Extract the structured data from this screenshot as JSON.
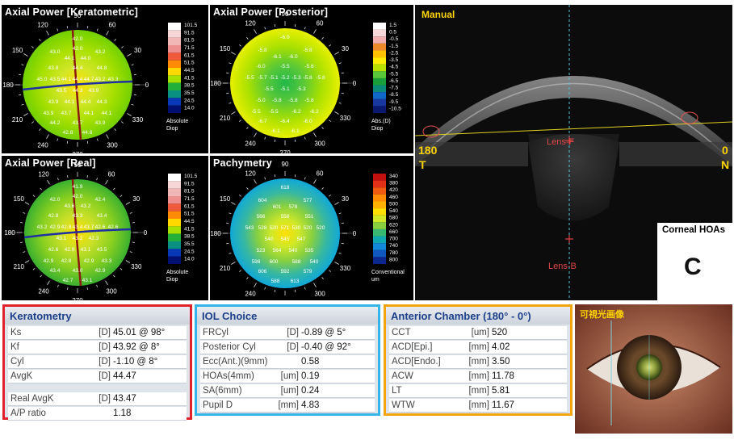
{
  "panels": {
    "ker": {
      "title": "Axial Power [Keratometric]",
      "scale": [
        "101.5",
        "91.5",
        "81.5",
        "71.5",
        "61.5",
        "51.5",
        "44.5",
        "41.5",
        "38.5",
        "35.5",
        "24.5",
        "14.0"
      ],
      "scale_unit": [
        "Absolute",
        "Diop"
      ],
      "values": [
        "42.0",
        "43.0",
        "43.2",
        "44.1",
        "44.0",
        "43.8",
        "44.4",
        "44.8",
        "45.0",
        "43.5",
        "44.1",
        "44.4",
        "44.7",
        "43.2",
        "43.3",
        "43.5",
        "44.3",
        "43.9",
        "43.9",
        "44.1",
        "44.4",
        "44.3",
        "43.9",
        "43.7",
        "44.1",
        "44.1",
        "44.2",
        "43.7",
        "43.9",
        "42.8",
        "44.6",
        "42.0"
      ]
    },
    "post": {
      "title": "Axial Power [Posterior]",
      "scale": [
        "1.5",
        "0.5",
        "-0.5",
        "-1.5",
        "-2.5",
        "-3.5",
        "-4.5",
        "-5.5",
        "-6.5",
        "-7.5",
        "-8.5",
        "-9.5",
        "-10.5"
      ],
      "scale_unit": [
        "Abs.(D)",
        "Diop"
      ],
      "values": [
        "-6.0",
        "-5.8",
        "-5.8",
        "-6.1",
        "-6.0",
        "-6.0",
        "-5.5",
        "-5.6",
        "-5.5",
        "-5.7",
        "-5.1",
        "-5.2",
        "-5.3",
        "-5.8",
        "-5.8",
        "-5.5",
        "-5.1",
        "-5.3",
        "-5.0",
        "-5.8",
        "-5.8",
        "-5.8",
        "-5.5",
        "-5.5",
        "-6.2",
        "-6.2",
        "-6.7",
        "-6.4",
        "-6.0",
        "-6.1",
        "-6.1"
      ]
    },
    "real": {
      "title": "Axial Power [Real]",
      "scale": [
        "101.5",
        "91.5",
        "81.5",
        "71.5",
        "61.5",
        "51.5",
        "44.5",
        "41.5",
        "38.5",
        "35.5",
        "24.5",
        "14.0"
      ],
      "scale_unit": [
        "Absolute",
        "Diop"
      ],
      "values": [
        "41.9",
        "42.0",
        "42.4",
        "43.6",
        "43.2",
        "42.8",
        "43.3",
        "43.4",
        "43.2",
        "42.9",
        "42.8",
        "43.4",
        "43.7",
        "42.6",
        "42.6",
        "43.1",
        "43.2",
        "42.3",
        "42.6",
        "42.9",
        "43.1",
        "43.5",
        "42.9",
        "42.8",
        "42.9",
        "43.3",
        "43.4",
        "43.0",
        "42.9",
        "42.7",
        "43.1",
        "42.0"
      ]
    },
    "pachy": {
      "title": "Pachymetry",
      "scale": [
        "340",
        "380",
        "420",
        "460",
        "500",
        "540",
        "580",
        "620",
        "660",
        "700",
        "740",
        "780",
        "800"
      ],
      "scale_unit": [
        "Conventional",
        "um"
      ],
      "values": [
        "618",
        "604",
        "577",
        "601",
        "578",
        "566",
        "558",
        "551",
        "543",
        "528",
        "520",
        "571",
        "530",
        "520",
        "520",
        "540",
        "545",
        "547",
        "523",
        "564",
        "540",
        "535",
        "598",
        "600",
        "588",
        "540",
        "606",
        "592",
        "579",
        "588",
        "613"
      ]
    }
  },
  "axis_labels": {
    "a0": "0",
    "a30": "30",
    "a60": "60",
    "a90": "90",
    "a120": "120",
    "a150": "150",
    "a180": "180",
    "a210": "210",
    "a240": "240",
    "a270": "270",
    "a300": "300",
    "a330": "330"
  },
  "oct": {
    "mode": "Manual",
    "left_deg": "180",
    "left_letter": "T",
    "right_deg": "0",
    "right_letter": "N",
    "lens_f": "Lens-F",
    "lens_b": "Lens-B",
    "hoas_title": "Corneal HOAs",
    "hoas_grade": "C"
  },
  "keratometry": {
    "title": "Keratometry",
    "rows": [
      {
        "label": "Ks",
        "unit": "[D]",
        "value": "45.01 @ 98°"
      },
      {
        "label": "Kf",
        "unit": "[D]",
        "value": "43.92 @ 8°"
      },
      {
        "label": "Cyl",
        "unit": "[D]",
        "value": "-1.10 @ 8°"
      },
      {
        "label": "AvgK",
        "unit": "[D]",
        "value": "44.47"
      }
    ],
    "rows2": [
      {
        "label": "Real AvgK",
        "unit": "[D]",
        "value": "43.47"
      },
      {
        "label": "A/P ratio",
        "unit": "",
        "value": "1.18"
      }
    ],
    "border": "#e0202a"
  },
  "iol": {
    "title": "IOL Choice",
    "rows": [
      {
        "label": "FRCyl",
        "unit": "[D]",
        "value": "-0.89 @ 5°"
      },
      {
        "label": "Posterior Cyl",
        "unit": "[D]",
        "value": "-0.40 @ 92°"
      },
      {
        "label": "Ecc(Ant.)(9mm)",
        "unit": "",
        "value": "0.58"
      },
      {
        "label": "HOAs(4mm)",
        "unit": "[um]",
        "value": "0.19"
      },
      {
        "label": "SA(6mm)",
        "unit": "[um]",
        "value": "0.24"
      },
      {
        "label": "Pupil D",
        "unit": "[mm]",
        "value": "4.83"
      }
    ],
    "border": "#35b4ea"
  },
  "anterior": {
    "title": "Anterior Chamber (180° - 0°)",
    "rows": [
      {
        "label": "CCT",
        "unit": "[um]",
        "value": "520"
      },
      {
        "label": "ACD[Epi.]",
        "unit": "[mm]",
        "value": "4.02"
      },
      {
        "label": "ACD[Endo.]",
        "unit": "[mm]",
        "value": "3.50"
      },
      {
        "label": "ACW",
        "unit": "[mm]",
        "value": "11.78"
      },
      {
        "label": "LT",
        "unit": "[mm]",
        "value": "5.81"
      },
      {
        "label": "WTW",
        "unit": "[mm]",
        "value": "11.67"
      }
    ],
    "border": "#f4a40e"
  },
  "photo": {
    "title": "可視光画像"
  }
}
